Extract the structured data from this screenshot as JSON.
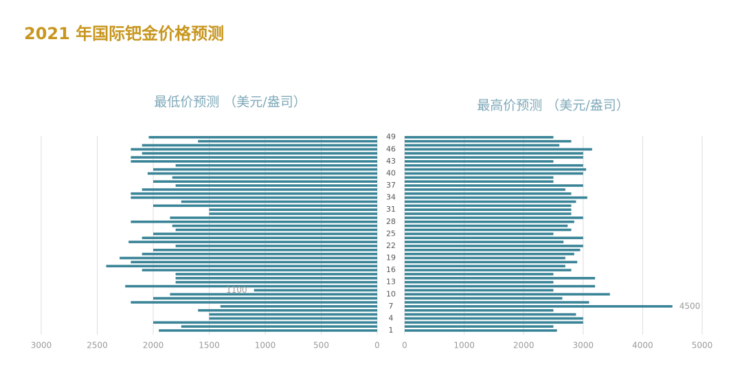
{
  "title": "2021 年国际钯金价格预测",
  "chart_data": [
    {
      "type": "bar",
      "orientation": "horizontal",
      "direction": "reversed",
      "title": "最低价预测 （美元/盎司）",
      "categories": [
        "1",
        null,
        null,
        "4",
        null,
        null,
        "7",
        null,
        null,
        "10",
        null,
        null,
        "13",
        null,
        null,
        "16",
        null,
        null,
        "19",
        null,
        null,
        "22",
        null,
        null,
        "25",
        null,
        null,
        "28",
        null,
        null,
        "31",
        null,
        null,
        "34",
        null,
        null,
        "37",
        null,
        null,
        "40",
        null,
        null,
        "43",
        null,
        null,
        "46",
        null,
        null,
        "49"
      ],
      "values": [
        1950,
        1750,
        2000,
        1500,
        1500,
        1600,
        1400,
        2200,
        2000,
        1850,
        1100,
        2250,
        1800,
        1800,
        1800,
        2100,
        2420,
        2200,
        2300,
        2100,
        2000,
        1800,
        2220,
        2100,
        2000,
        1800,
        1830,
        2200,
        1850,
        1500,
        1500,
        2000,
        1750,
        2200,
        2200,
        2100,
        1800,
        2000,
        1830,
        2050,
        2000,
        1800,
        2200,
        2200,
        2100,
        2200,
        2100,
        1600,
        2040
      ],
      "data_labels": [
        10
      ],
      "color": "#3a8497",
      "xlim": [
        0,
        3000
      ],
      "xticks": [
        0,
        500,
        1000,
        1500,
        2000,
        2500,
        3000
      ],
      "grid": true
    },
    {
      "type": "bar",
      "orientation": "horizontal",
      "title": "最高价预测 （美元/盎司）",
      "values": [
        2560,
        2500,
        3000,
        3000,
        2880,
        2500,
        4500,
        3100,
        2650,
        3450,
        2500,
        3200,
        2500,
        3200,
        2500,
        2800,
        2700,
        2900,
        2700,
        2850,
        2950,
        3000,
        2670,
        3000,
        2500,
        2800,
        2740,
        2850,
        3000,
        2800,
        2800,
        2800,
        2880,
        3070,
        2800,
        2700,
        3000,
        2500,
        2500,
        3000,
        3050,
        3000,
        2500,
        3000,
        3000,
        3150,
        2600,
        2800,
        2500
      ],
      "data_labels": [
        6
      ],
      "color": "#3a8497",
      "xlim": [
        0,
        5000
      ],
      "xticks": [
        0,
        1000,
        2000,
        3000,
        4000,
        5000
      ],
      "grid": true
    }
  ]
}
